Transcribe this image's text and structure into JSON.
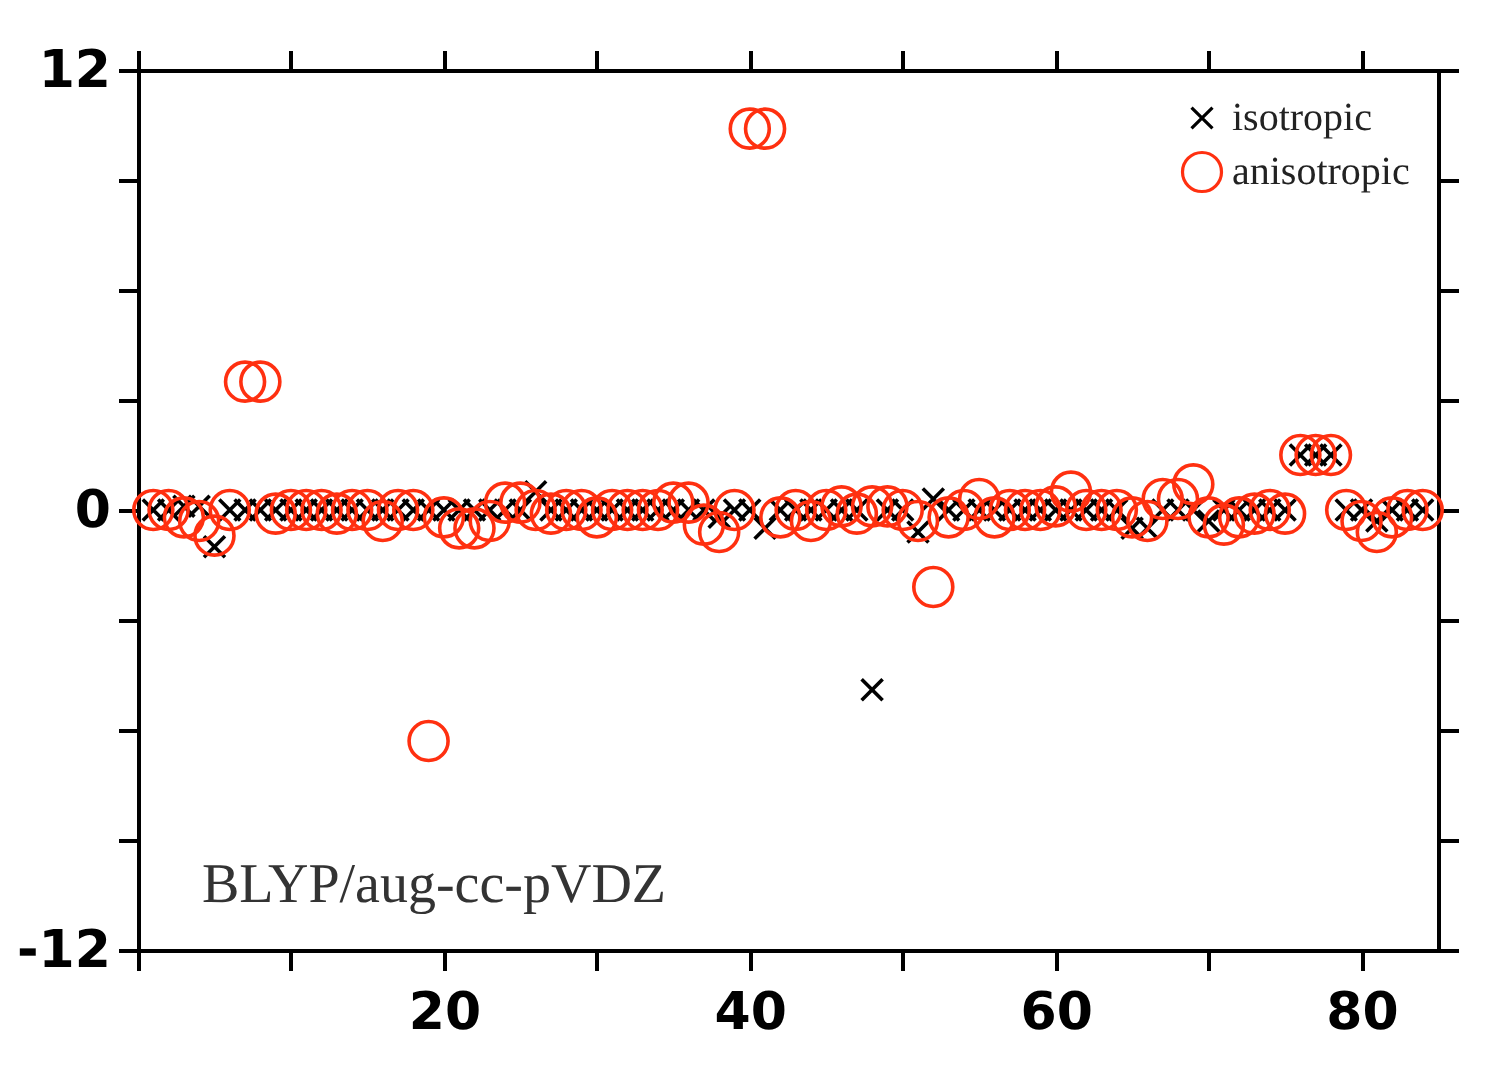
{
  "chart_data": {
    "type": "scatter",
    "x": [
      1,
      2,
      3,
      4,
      5,
      6,
      7,
      8,
      9,
      10,
      11,
      12,
      13,
      14,
      15,
      16,
      17,
      18,
      19,
      20,
      21,
      22,
      23,
      24,
      25,
      26,
      27,
      28,
      29,
      30,
      31,
      32,
      33,
      34,
      35,
      36,
      37,
      38,
      39,
      40,
      41,
      42,
      43,
      44,
      45,
      46,
      47,
      48,
      49,
      50,
      51,
      52,
      53,
      54,
      55,
      56,
      57,
      58,
      59,
      60,
      61,
      62,
      63,
      64,
      65,
      66,
      67,
      68,
      69,
      70,
      71,
      72,
      73,
      74,
      75,
      76,
      77,
      78,
      79,
      80,
      81,
      82,
      83,
      84
    ],
    "series": [
      {
        "name": "isotropic",
        "color": "#000000",
        "marker": "cross",
        "values": [
          0,
          0,
          0.1,
          0.1,
          -1.0,
          0,
          0,
          0,
          0,
          0,
          0,
          0,
          0,
          0,
          0,
          0,
          0,
          0,
          0,
          0,
          0,
          0,
          0,
          0,
          0,
          0.5,
          0,
          0,
          0,
          0,
          0,
          0,
          0,
          0,
          0,
          0,
          0,
          -0.2,
          0,
          0,
          -0.5,
          0,
          0,
          0,
          0,
          0,
          0,
          -4.9,
          0,
          0,
          -0.6,
          0.3,
          0,
          0,
          0,
          0,
          0,
          0,
          0,
          0,
          0,
          0,
          0,
          0,
          -0.5,
          -0.5,
          0,
          0,
          0,
          -0.3,
          0,
          0,
          0,
          0,
          0,
          1.5,
          1.5,
          1.5,
          0,
          0,
          -0.3,
          0,
          0,
          0
        ]
      },
      {
        "name": "anisotropic",
        "color": "#ff3010",
        "marker": "circle",
        "values": [
          0,
          0,
          -0.2,
          -0.3,
          -0.7,
          0,
          3.5,
          3.5,
          -0.1,
          0,
          0,
          0,
          -0.1,
          0,
          0,
          -0.3,
          0,
          0,
          -6.3,
          -0.2,
          -0.5,
          -0.5,
          -0.3,
          0.2,
          0.2,
          0,
          -0.1,
          0,
          0,
          -0.2,
          0,
          0,
          0,
          0,
          0.2,
          0.2,
          -0.4,
          -0.6,
          0,
          10.4,
          10.4,
          -0.2,
          0,
          -0.3,
          0,
          0.1,
          -0.1,
          0.1,
          0.1,
          0,
          -0.3,
          -2.1,
          -0.2,
          0,
          0.3,
          -0.2,
          0,
          0,
          0,
          0.1,
          0.5,
          0,
          0,
          0,
          -0.2,
          -0.3,
          0.3,
          0.3,
          0.7,
          -0.2,
          -0.4,
          -0.2,
          -0.1,
          0,
          -0.1,
          1.5,
          1.5,
          1.5,
          0,
          -0.3,
          -0.6,
          -0.2,
          0,
          0
        ]
      }
    ],
    "xlim": [
      0,
      85
    ],
    "xticks": [
      {
        "value": 0,
        "label": null
      },
      {
        "value": 10,
        "label": null
      },
      20,
      {
        "value": 30,
        "label": null
      },
      40,
      {
        "value": 50,
        "label": null
      },
      60,
      {
        "value": 70,
        "label": null
      },
      80
    ],
    "ylim": [
      -12,
      12
    ],
    "yticks": [
      -12,
      {
        "value": -9,
        "label": null
      },
      {
        "value": -6,
        "label": null
      },
      {
        "value": -3,
        "label": null
      },
      0,
      {
        "value": 3,
        "label": null
      },
      {
        "value": 6,
        "label": null
      },
      {
        "value": 9,
        "label": null
      },
      12
    ],
    "grid": false,
    "legend": "top right",
    "annotations": [
      "BLYP/aug-cc-pVDZ"
    ]
  }
}
